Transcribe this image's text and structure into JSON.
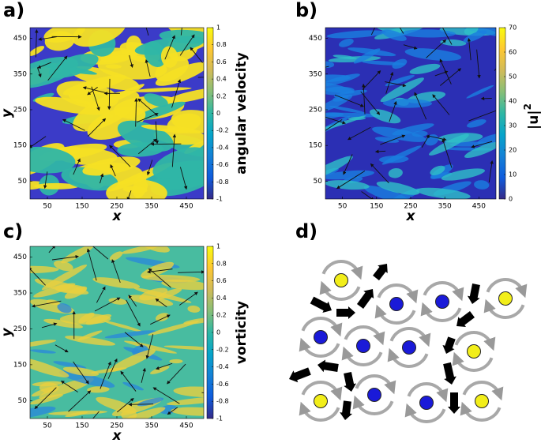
{
  "chart_data": [
    {
      "type": "heatmap",
      "panel_label": "a)",
      "xlabel": "x",
      "ylabel": "y",
      "xlim": [
        0,
        500
      ],
      "ylim": [
        0,
        480
      ],
      "xticks": [
        50,
        150,
        250,
        350,
        450
      ],
      "yticks": [
        50,
        150,
        250,
        350,
        450
      ],
      "colorbar_label": "angular velocity",
      "colorbar_lim": [
        -1,
        1
      ],
      "colorbar_ticks": [
        -1,
        -0.8,
        -0.6,
        -0.4,
        -0.2,
        0,
        0.2,
        0.4,
        0.6,
        0.8,
        1
      ],
      "colormap": [
        "#352a87",
        "#0f5cdd",
        "#1481d6",
        "#06a4ca",
        "#2eb7a4",
        "#87bf77",
        "#d1bb59",
        "#fec832",
        "#f9fb0e"
      ],
      "field_colors": [
        "#3b3bc8",
        "#f5e024",
        "#2fb6a6"
      ]
    },
    {
      "type": "heatmap",
      "panel_label": "b)",
      "xlabel": "x",
      "ylabel": "y",
      "xlim": [
        0,
        500
      ],
      "ylim": [
        0,
        480
      ],
      "xticks": [
        50,
        150,
        250,
        350,
        450
      ],
      "yticks": [
        50,
        150,
        250,
        350,
        450
      ],
      "colorbar_label": "|u|",
      "colorbar_label_sup": "2",
      "colorbar_lim": [
        0,
        70
      ],
      "colorbar_ticks": [
        0,
        10,
        20,
        30,
        40,
        50,
        60,
        70
      ],
      "colormap": [
        "#352a87",
        "#0f5cdd",
        "#1481d6",
        "#06a4ca",
        "#2eb7a4",
        "#87bf77",
        "#d1bb59",
        "#fec832",
        "#f9fb0e"
      ],
      "field_colors": [
        "#2b2fb4",
        "#1a7fe0",
        "#30c0c8"
      ]
    },
    {
      "type": "heatmap",
      "panel_label": "c)",
      "xlabel": "x",
      "ylabel": "y",
      "xlim": [
        0,
        500
      ],
      "ylim": [
        0,
        480
      ],
      "xticks": [
        50,
        150,
        250,
        350,
        450
      ],
      "yticks": [
        50,
        150,
        250,
        350,
        450
      ],
      "colorbar_label": "vorticity",
      "colorbar_lim": [
        -1,
        1
      ],
      "colorbar_ticks": [
        -1,
        -0.8,
        -0.6,
        -0.4,
        -0.2,
        0,
        0.2,
        0.4,
        0.6,
        0.8,
        1
      ],
      "colormap": [
        "#352a87",
        "#0f5cdd",
        "#1481d6",
        "#06a4ca",
        "#2eb7a4",
        "#87bf77",
        "#d1bb59",
        "#fec832",
        "#f9fb0e"
      ],
      "field_colors": [
        "#48bca0",
        "#e9d040",
        "#2a8ad8"
      ]
    },
    {
      "type": "diagram",
      "panel_label": "d)"
    }
  ]
}
